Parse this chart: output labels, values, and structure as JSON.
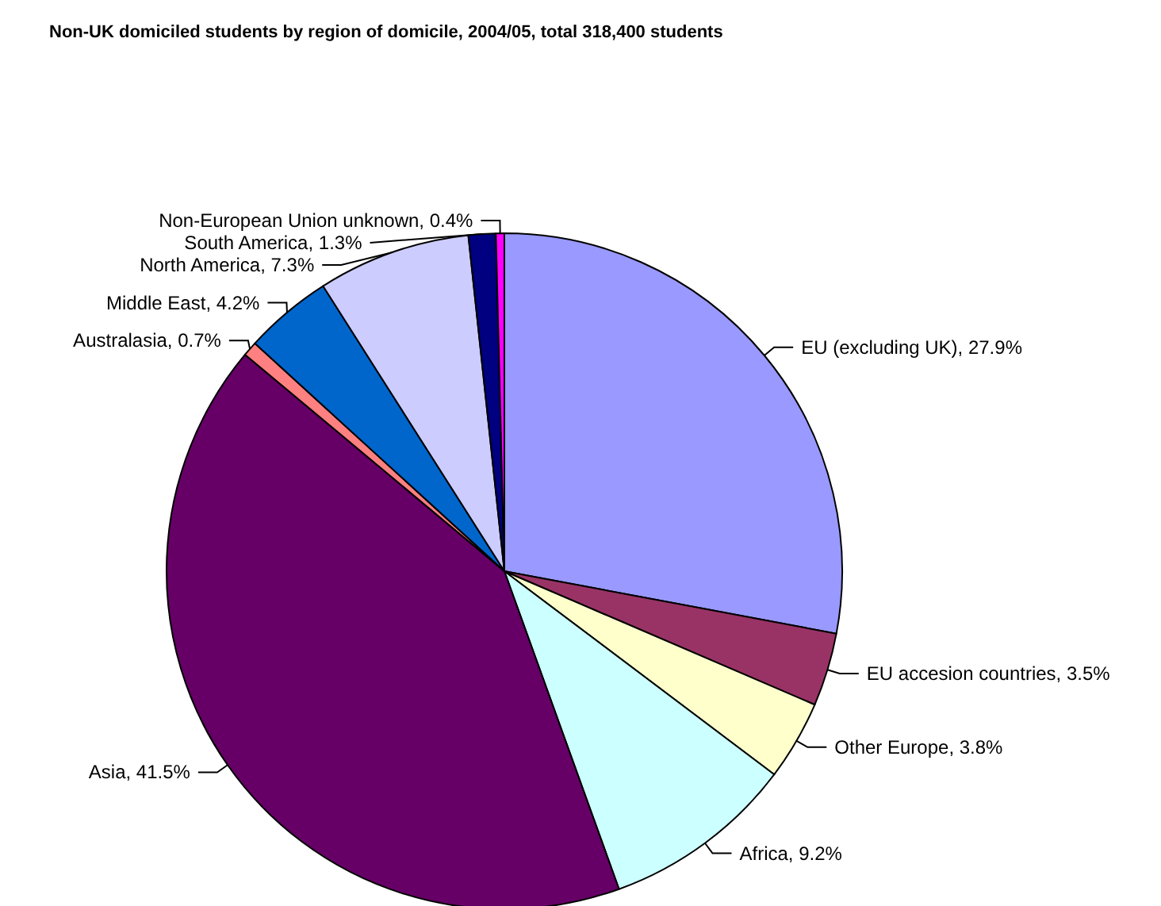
{
  "chart_data": {
    "type": "pie",
    "title": "Non-UK domiciled students by region of domicile, 2004/05, total 318,400 students",
    "categories": [
      "EU (excluding UK)",
      "EU accesion countries",
      "Other Europe",
      "Africa",
      "Asia",
      "Australasia",
      "Middle East",
      "North America",
      "South America",
      "Non-European Union unknown"
    ],
    "values": [
      27.9,
      3.5,
      3.8,
      9.2,
      41.5,
      0.7,
      4.2,
      7.3,
      1.3,
      0.4
    ],
    "value_labels": [
      "27.9%",
      "3.5%",
      "3.8%",
      "9.2%",
      "41.5%",
      "0.7%",
      "4.2%",
      "7.3%",
      "1.3%",
      "0.4%"
    ],
    "colors": [
      "#9999ff",
      "#993366",
      "#ffffcc",
      "#ccffff",
      "#660066",
      "#ff8080",
      "#0066cc",
      "#ccccff",
      "#000080",
      "#ff00ff"
    ],
    "legend": false
  }
}
